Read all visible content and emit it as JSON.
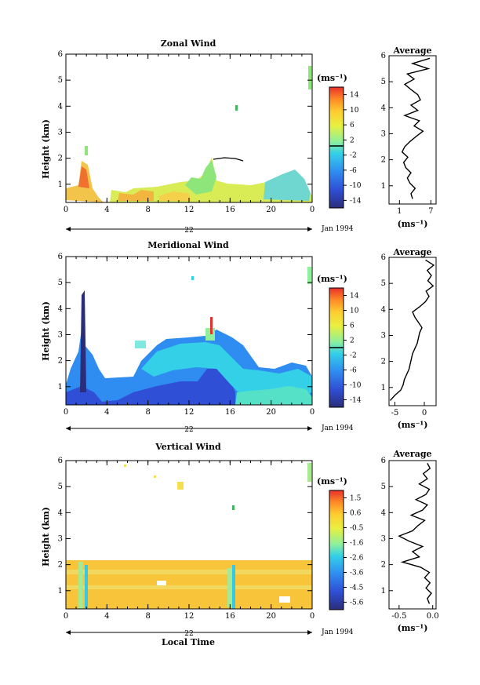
{
  "chart_data": [
    {
      "type": "heatmap",
      "title": "Zonal Wind",
      "xlabel": "",
      "ylabel": "Height (km)",
      "x_ticks": [
        "0",
        "4",
        "8",
        "12",
        "16",
        "20",
        "0"
      ],
      "xlim": [
        0,
        24
      ],
      "ylim": [
        0.3,
        6
      ],
      "y_ticks": [
        "1",
        "2",
        "3",
        "4",
        "5",
        "6"
      ],
      "date_marker": "22",
      "date_label": "Jan 1994",
      "colorbar": {
        "unit": "(ms⁻¹)",
        "ticks": [
          "14",
          "10",
          "6",
          "2",
          "-2",
          "-6",
          "-10",
          "-14"
        ],
        "range": [
          -16,
          16
        ]
      },
      "profile": {
        "title": "Average",
        "xlabel": "(ms⁻¹)",
        "x_ticks": [
          "1",
          "7"
        ],
        "xlim": [
          -1,
          8
        ],
        "y_ticks": [
          "1",
          "2",
          "3",
          "4",
          "5",
          "6"
        ],
        "heights": [
          0.5,
          0.7,
          0.9,
          1.1,
          1.3,
          1.5,
          1.7,
          1.9,
          2.1,
          2.3,
          2.5,
          2.7,
          2.9,
          3.1,
          3.3,
          3.5,
          3.7,
          3.9,
          4.1,
          4.3,
          4.5,
          4.7,
          4.9,
          5.1,
          5.3,
          5.5,
          5.7,
          5.9
        ],
        "values": [
          3.5,
          3.2,
          4.0,
          3.0,
          2.5,
          3.2,
          2.2,
          1.8,
          2.6,
          1.5,
          2.0,
          3.0,
          4.2,
          5.5,
          3.8,
          4.8,
          2.0,
          4.5,
          3.2,
          5.0,
          4.5,
          3.2,
          2.0,
          3.8,
          2.5,
          6.5,
          3.5,
          6.8
        ]
      }
    },
    {
      "type": "heatmap",
      "title": "Meridional Wind",
      "xlabel": "",
      "ylabel": "Height (km)",
      "x_ticks": [
        "0",
        "4",
        "8",
        "12",
        "16",
        "20",
        "0"
      ],
      "xlim": [
        0,
        24
      ],
      "ylim": [
        0.3,
        6
      ],
      "y_ticks": [
        "1",
        "2",
        "3",
        "4",
        "5",
        "6"
      ],
      "date_marker": "22",
      "date_label": "Jan 1994",
      "colorbar": {
        "unit": "(ms⁻¹)",
        "ticks": [
          "14",
          "10",
          "6",
          "2",
          "-2",
          "-6",
          "-10",
          "-14"
        ],
        "range": [
          -16,
          16
        ]
      },
      "profile": {
        "title": "Average",
        "xlabel": "(ms⁻¹)",
        "x_ticks": [
          "-5",
          "0"
        ],
        "xlim": [
          -6,
          2
        ],
        "y_ticks": [
          "1",
          "2",
          "3",
          "4",
          "5",
          "6"
        ],
        "heights": [
          0.5,
          0.7,
          0.9,
          1.1,
          1.3,
          1.5,
          1.7,
          1.9,
          2.1,
          2.3,
          2.5,
          2.7,
          2.9,
          3.1,
          3.3,
          3.5,
          3.7,
          3.9,
          4.1,
          4.3,
          4.5,
          4.7,
          4.9,
          5.1,
          5.3,
          5.5,
          5.7,
          5.9
        ],
        "values": [
          -5.8,
          -5.0,
          -4.0,
          -3.6,
          -3.4,
          -3.0,
          -2.6,
          -2.4,
          -2.2,
          -2.0,
          -1.6,
          -1.2,
          -1.0,
          -0.8,
          -0.4,
          -1.0,
          -1.6,
          -2.0,
          -0.8,
          0.2,
          0.8,
          0.3,
          1.5,
          0.6,
          1.2,
          0.5,
          1.6,
          0.2
        ]
      }
    },
    {
      "type": "heatmap",
      "title": "Vertical Wind",
      "xlabel": "Local Time",
      "ylabel": "Height (km)",
      "x_ticks": [
        "0",
        "4",
        "8",
        "12",
        "16",
        "20",
        "0"
      ],
      "xlim": [
        0,
        24
      ],
      "ylim": [
        0.3,
        6
      ],
      "y_ticks": [
        "1",
        "2",
        "3",
        "4",
        "5",
        "6"
      ],
      "date_marker": "22",
      "date_label": "Jan 1994",
      "colorbar": {
        "unit": "(ms⁻¹)",
        "ticks": [
          "1.5",
          "0.6",
          "-0.5",
          "-1.6",
          "-2.6",
          "-3.6",
          "-4.5",
          "-5.6"
        ],
        "range": [
          -6,
          2
        ]
      },
      "profile": {
        "title": "Average",
        "xlabel": "(ms⁻¹)",
        "x_ticks": [
          "-0.5",
          "0.0"
        ],
        "xlim": [
          -0.65,
          0.05
        ],
        "y_ticks": [
          "1",
          "2",
          "3",
          "4",
          "5",
          "6"
        ],
        "heights": [
          0.5,
          0.7,
          0.9,
          1.1,
          1.3,
          1.5,
          1.7,
          1.9,
          2.1,
          2.3,
          2.5,
          2.7,
          2.9,
          3.1,
          3.3,
          3.5,
          3.7,
          3.9,
          4.1,
          4.3,
          4.5,
          4.7,
          4.9,
          5.1,
          5.3,
          5.5,
          5.7,
          5.9
        ],
        "values": [
          -0.05,
          -0.08,
          -0.02,
          -0.1,
          -0.04,
          -0.12,
          -0.05,
          -0.18,
          -0.45,
          -0.2,
          -0.3,
          -0.15,
          -0.35,
          -0.5,
          -0.3,
          -0.22,
          -0.12,
          -0.32,
          -0.15,
          -0.08,
          -0.25,
          -0.1,
          -0.05,
          -0.2,
          -0.08,
          -0.14,
          -0.04,
          -0.08
        ]
      }
    }
  ]
}
